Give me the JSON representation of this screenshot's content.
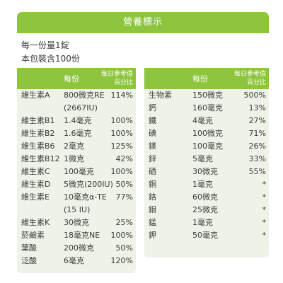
{
  "title": "營養標示",
  "serving": "每一份量1錠",
  "servings_per_pack": "本包裝含100份",
  "header": {
    "per_serving": "每份",
    "dv_line1": "每日參考值",
    "dv_line2": "百分比"
  },
  "left_rows": [
    {
      "name": "維生素A",
      "amount": "800微克RE",
      "pct": "114%"
    },
    {
      "name": "",
      "amount": "(2667IU)",
      "pct": ""
    },
    {
      "name": "維生素B1",
      "amount": "1.4毫克",
      "pct": "100%"
    },
    {
      "name": "維生素B2",
      "amount": "1.6毫克",
      "pct": "100%"
    },
    {
      "name": "維生素B6",
      "amount": "2毫克",
      "pct": "125%"
    },
    {
      "name": "維生素B12",
      "amount": "1微克",
      "pct": "42%"
    },
    {
      "name": "維生素C",
      "amount": "100毫克",
      "pct": "100%"
    },
    {
      "name": "維生素D",
      "amount": "5微克(200IU)",
      "pct": "50%"
    },
    {
      "name": "維生素E",
      "amount": "10毫克α-TE",
      "pct": "77%"
    },
    {
      "name": "",
      "amount": "(15 IU)",
      "pct": ""
    },
    {
      "name": "維生素K",
      "amount": "30微克",
      "pct": "25%"
    },
    {
      "name": "菸鹼素",
      "amount": "18毫克NE",
      "pct": "100%"
    },
    {
      "name": "葉酸",
      "amount": "200微克",
      "pct": "50%"
    },
    {
      "name": "泛酸",
      "amount": "6毫克",
      "pct": "120%"
    }
  ],
  "right_rows": [
    {
      "name": "生物素",
      "amount": "150微克",
      "pct": "500%"
    },
    {
      "name": "鈣",
      "amount": "160毫克",
      "pct": "13%"
    },
    {
      "name": "鐵",
      "amount": "4毫克",
      "pct": "27%"
    },
    {
      "name": "碘",
      "amount": "100微克",
      "pct": "71%"
    },
    {
      "name": "鎂",
      "amount": "100毫克",
      "pct": "26%"
    },
    {
      "name": "鋅",
      "amount": "5毫克",
      "pct": "33%"
    },
    {
      "name": "硒",
      "amount": "30微克",
      "pct": "55%"
    },
    {
      "name": "銅",
      "amount": "1毫克",
      "pct": "*"
    },
    {
      "name": "鉻",
      "amount": "60微克",
      "pct": "*"
    },
    {
      "name": "鉬",
      "amount": "25微克",
      "pct": "*"
    },
    {
      "name": "錳",
      "amount": "1毫克",
      "pct": "*"
    },
    {
      "name": "鉀",
      "amount": "50毫克",
      "pct": "*"
    }
  ],
  "colors": {
    "accent": "#8dc53e",
    "panel": "#eef2e8",
    "text": "#3a3a3a"
  }
}
